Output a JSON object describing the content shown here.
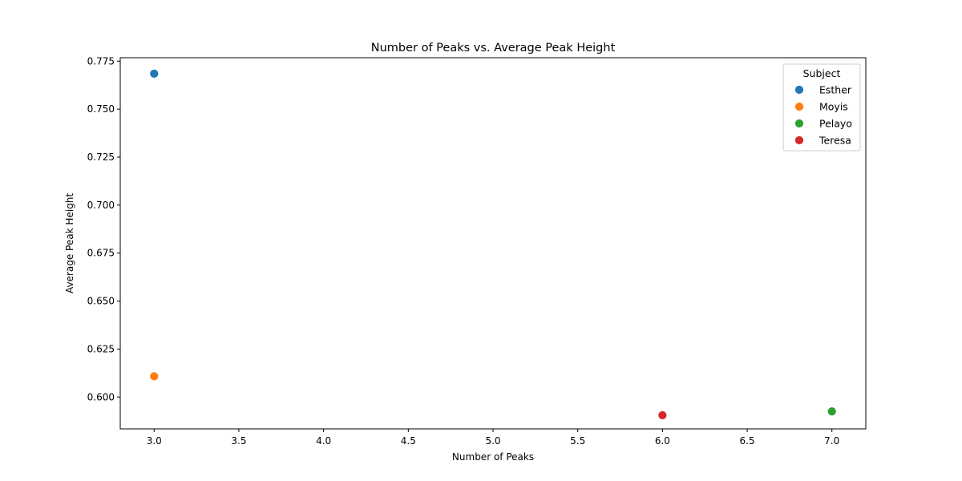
{
  "chart_data": {
    "type": "scatter",
    "title": "Number of Peaks vs. Average Peak Height",
    "xlabel": "Number of Peaks",
    "ylabel": "Average Peak Height",
    "xlim": [
      2.8,
      7.2
    ],
    "ylim": [
      0.5834,
      0.7768
    ],
    "xticks": [
      3.0,
      3.5,
      4.0,
      4.5,
      5.0,
      5.5,
      6.0,
      6.5,
      7.0
    ],
    "xtick_labels": [
      "3.0",
      "3.5",
      "4.0",
      "4.5",
      "5.0",
      "5.5",
      "6.0",
      "6.5",
      "7.0"
    ],
    "yticks": [
      0.6,
      0.625,
      0.65,
      0.675,
      0.7,
      0.725,
      0.75,
      0.775
    ],
    "ytick_labels": [
      "0.600",
      "0.625",
      "0.650",
      "0.675",
      "0.700",
      "0.725",
      "0.750",
      "0.775"
    ],
    "grid": false,
    "legend": {
      "title": "Subject",
      "placement": "top-right"
    },
    "series": [
      {
        "name": "Esther",
        "color": "#1f77b4",
        "points": [
          {
            "x": 3,
            "y": 0.7685
          }
        ]
      },
      {
        "name": "Moyis",
        "color": "#ff7f0e",
        "points": [
          {
            "x": 3,
            "y": 0.6108
          }
        ]
      },
      {
        "name": "Pelayo",
        "color": "#2ca02c",
        "points": [
          {
            "x": 7,
            "y": 0.5925
          }
        ]
      },
      {
        "name": "Teresa",
        "color": "#d62728",
        "points": [
          {
            "x": 6,
            "y": 0.5905
          }
        ]
      }
    ]
  }
}
